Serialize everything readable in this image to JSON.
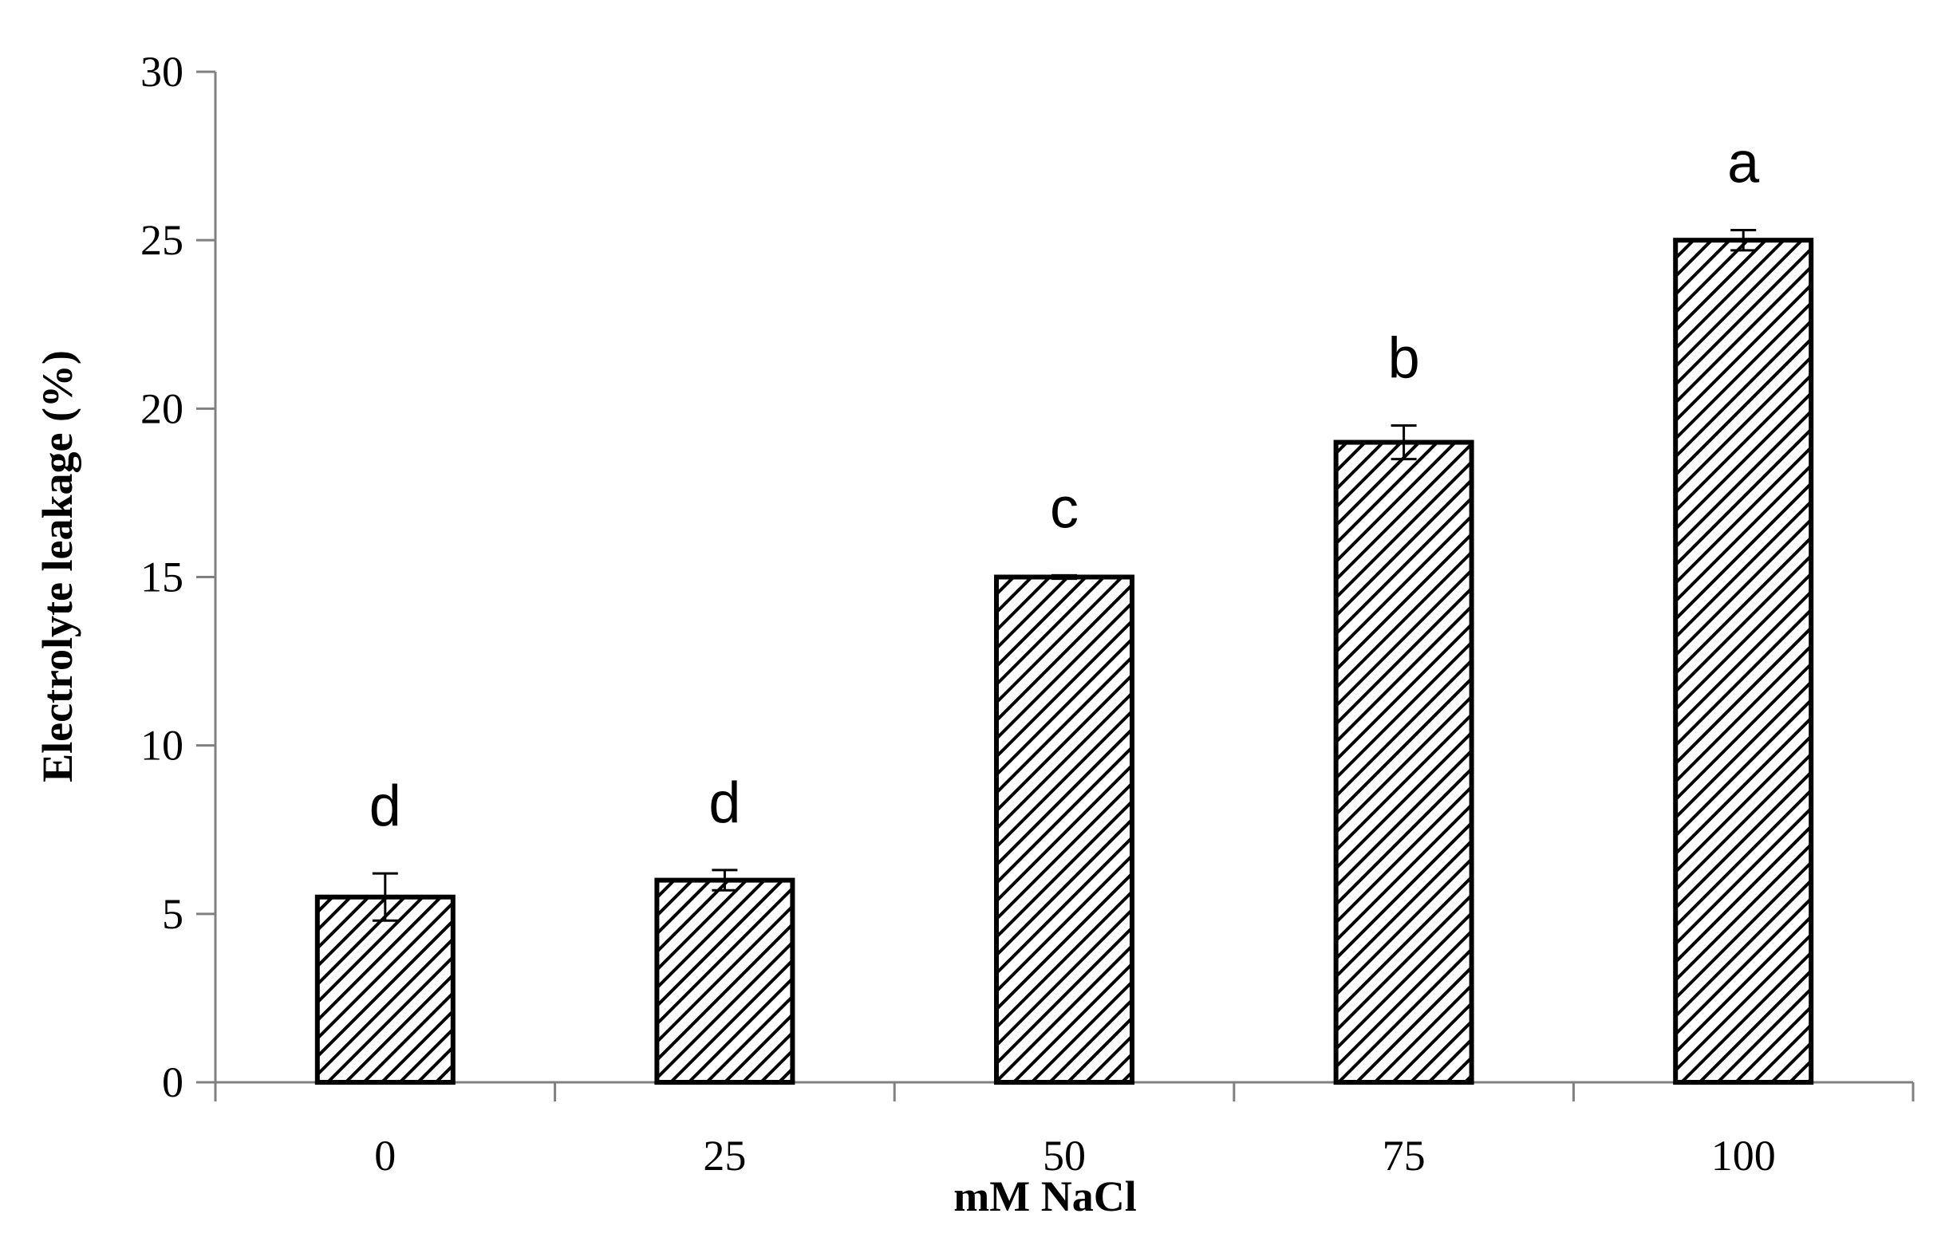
{
  "chart_data": {
    "type": "bar",
    "categories": [
      "0",
      "25",
      "50",
      "75",
      "100"
    ],
    "values": [
      5.5,
      6.0,
      15.0,
      19.0,
      25.0
    ],
    "errors": [
      0.7,
      0.3,
      0.05,
      0.5,
      0.3
    ],
    "significance_letters": [
      "d",
      "d",
      "c",
      "b",
      "a"
    ],
    "title": "",
    "xlabel": "mM NaCl",
    "ylabel": "Electrolyte leakage (%)",
    "ylim": [
      0,
      30
    ],
    "yticks": [
      0,
      5,
      10,
      15,
      20,
      25,
      30
    ],
    "grid": false,
    "legend": "none",
    "bar_fill": "diagonal-hatch",
    "colors": {
      "bar_edge": "#000000",
      "hatch": "#000000",
      "axis": "#808080",
      "background": "#ffffff"
    }
  }
}
